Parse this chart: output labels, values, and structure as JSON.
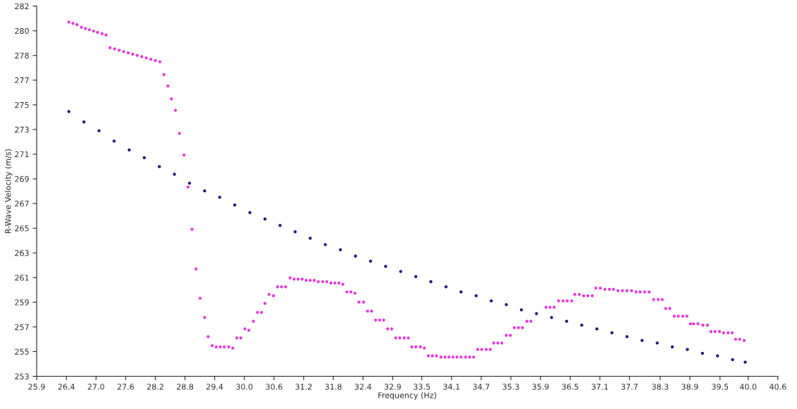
{
  "chart_data": {
    "type": "scatter",
    "xlabel": "Frequency (Hz)",
    "ylabel": "R-Wave Velocity (m/s)",
    "marker": "circle",
    "grid": false,
    "xlim": [
      25.86,
      40.6
    ],
    "ylim": [
      253.4,
      282.35
    ],
    "xticks": [
      {
        "value": 25.86,
        "label": "25.9"
      },
      {
        "value": 26.45,
        "label": "26.4"
      },
      {
        "value": 27.04,
        "label": "27.0"
      },
      {
        "value": 27.63,
        "label": "27.6"
      },
      {
        "value": 28.22,
        "label": "28.2"
      },
      {
        "value": 28.81,
        "label": "28.8"
      },
      {
        "value": 29.4,
        "label": "29.4"
      },
      {
        "value": 29.99,
        "label": "30.0"
      },
      {
        "value": 30.58,
        "label": "30.6"
      },
      {
        "value": 31.17,
        "label": "31.2"
      },
      {
        "value": 31.76,
        "label": "31.8"
      },
      {
        "value": 32.35,
        "label": "32.4"
      },
      {
        "value": 32.94,
        "label": "32.9"
      },
      {
        "value": 33.52,
        "label": "33.5"
      },
      {
        "value": 34.11,
        "label": "34.1"
      },
      {
        "value": 34.7,
        "label": "34.7"
      },
      {
        "value": 35.29,
        "label": "35.3"
      },
      {
        "value": 35.88,
        "label": "35.9"
      },
      {
        "value": 36.47,
        "label": "36.5"
      },
      {
        "value": 37.06,
        "label": "37.1"
      },
      {
        "value": 37.65,
        "label": "37.7"
      },
      {
        "value": 38.26,
        "label": "38.3"
      },
      {
        "value": 38.85,
        "label": "38.9"
      },
      {
        "value": 39.45,
        "label": "39.5"
      },
      {
        "value": 40.01,
        "label": "40.0"
      },
      {
        "value": 40.6,
        "label": "40.6"
      }
    ],
    "yticks": [
      {
        "value": 253.4,
        "label": "253"
      },
      {
        "value": 255.33,
        "label": "255"
      },
      {
        "value": 257.26,
        "label": "257"
      },
      {
        "value": 259.19,
        "label": "259"
      },
      {
        "value": 261.12,
        "label": "261"
      },
      {
        "value": 263.05,
        "label": "263"
      },
      {
        "value": 264.98,
        "label": "265"
      },
      {
        "value": 266.91,
        "label": "267"
      },
      {
        "value": 268.84,
        "label": "269"
      },
      {
        "value": 270.77,
        "label": "271"
      },
      {
        "value": 272.7,
        "label": "273"
      },
      {
        "value": 274.63,
        "label": "275"
      },
      {
        "value": 276.56,
        "label": "277"
      },
      {
        "value": 278.49,
        "label": "278"
      },
      {
        "value": 280.42,
        "label": "280"
      },
      {
        "value": 282.35,
        "label": "282"
      }
    ],
    "series": [
      {
        "color": "#e040d8",
        "x": [
          26.5,
          26.58,
          26.66,
          26.75,
          26.83,
          26.91,
          26.99,
          27.07,
          27.16,
          27.24,
          27.32,
          27.41,
          27.5,
          27.59,
          27.68,
          27.77,
          27.86,
          27.95,
          28.04,
          28.13,
          28.22,
          28.31,
          28.39,
          28.47,
          28.54,
          28.62,
          28.7,
          28.79,
          28.87,
          28.95,
          29.03,
          29.11,
          29.2,
          29.27,
          29.35,
          29.43,
          29.51,
          29.59,
          29.68,
          29.76,
          29.84,
          29.92,
          30.0,
          30.08,
          30.17,
          30.25,
          30.33,
          30.4,
          30.48,
          30.57,
          30.65,
          30.73,
          30.81,
          30.9,
          30.98,
          31.06,
          31.14,
          31.22,
          31.3,
          31.38,
          31.46,
          31.55,
          31.63,
          31.71,
          31.79,
          31.87,
          31.95,
          32.03,
          32.11,
          32.19,
          32.27,
          32.36,
          32.44,
          32.52,
          32.6,
          32.68,
          32.76,
          32.84,
          32.92,
          33.0,
          33.08,
          33.17,
          33.25,
          33.32,
          33.4,
          33.49,
          33.57,
          33.65,
          33.73,
          33.81,
          33.9,
          33.98,
          34.06,
          34.14,
          34.22,
          34.3,
          34.39,
          34.47,
          34.55,
          34.63,
          34.71,
          34.8,
          34.88,
          34.95,
          35.03,
          35.11,
          35.2,
          35.28,
          35.36,
          35.44,
          35.52,
          35.61,
          35.69,
          35.99,
          36.07,
          36.15,
          36.24,
          36.33,
          36.41,
          36.5,
          36.56,
          36.65,
          36.74,
          36.82,
          36.91,
          36.98,
          37.07,
          37.16,
          37.25,
          37.33,
          37.42,
          37.51,
          37.6,
          37.69,
          37.78,
          37.86,
          37.95,
          38.04,
          38.13,
          38.22,
          38.3,
          38.37,
          38.45,
          38.54,
          38.62,
          38.71,
          38.79,
          38.86,
          38.92,
          39.01,
          39.11,
          39.2,
          39.27,
          39.35,
          39.44,
          39.52,
          39.61,
          39.69,
          39.76,
          39.84,
          39.93
        ],
        "values": [
          281.1,
          281.0,
          280.9,
          280.7,
          280.6,
          280.5,
          280.4,
          280.3,
          280.2,
          280.1,
          279.1,
          279.0,
          278.9,
          278.8,
          278.7,
          278.6,
          278.5,
          278.4,
          278.3,
          278.2,
          278.1,
          278.0,
          277.0,
          276.1,
          275.1,
          274.2,
          272.4,
          270.7,
          268.2,
          264.9,
          261.8,
          259.5,
          258.0,
          256.5,
          255.8,
          255.7,
          255.7,
          255.7,
          255.7,
          255.6,
          256.4,
          256.4,
          257.1,
          257.0,
          257.7,
          258.4,
          258.4,
          259.1,
          259.8,
          259.7,
          260.4,
          260.4,
          260.4,
          261.1,
          261.0,
          261.0,
          261.0,
          260.9,
          260.9,
          260.9,
          260.8,
          260.8,
          260.8,
          260.7,
          260.7,
          260.7,
          260.6,
          260.0,
          260.0,
          259.9,
          259.2,
          259.2,
          258.5,
          258.5,
          257.8,
          257.8,
          257.8,
          257.1,
          257.1,
          256.4,
          256.4,
          256.4,
          256.4,
          255.7,
          255.7,
          255.7,
          255.6,
          255.0,
          255.0,
          255.0,
          254.9,
          254.9,
          254.9,
          254.9,
          254.9,
          254.9,
          254.9,
          254.9,
          254.9,
          255.5,
          255.5,
          255.5,
          255.5,
          256.0,
          256.0,
          256.0,
          256.6,
          256.6,
          257.2,
          257.2,
          257.2,
          257.7,
          257.7,
          258.8,
          258.8,
          258.8,
          259.3,
          259.3,
          259.3,
          259.3,
          259.8,
          259.8,
          259.7,
          259.7,
          259.7,
          260.3,
          260.3,
          260.2,
          260.2,
          260.2,
          260.1,
          260.1,
          260.1,
          260.1,
          260.0,
          260.0,
          260.0,
          260.0,
          259.4,
          259.4,
          259.4,
          258.7,
          258.7,
          258.1,
          258.1,
          258.1,
          258.1,
          257.5,
          257.5,
          257.5,
          257.4,
          257.4,
          256.9,
          256.9,
          256.9,
          256.8,
          256.8,
          256.8,
          256.3,
          256.3,
          256.2
        ]
      },
      {
        "color": "#1a1a7a",
        "x": [
          26.5,
          26.8,
          27.1,
          27.4,
          27.7,
          28.0,
          28.3,
          28.6,
          28.9,
          29.2,
          29.5,
          29.8,
          30.1,
          30.4,
          30.7,
          31.0,
          31.3,
          31.6,
          31.9,
          32.2,
          32.5,
          32.8,
          33.1,
          33.4,
          33.7,
          34.0,
          34.3,
          34.6,
          34.9,
          35.2,
          35.5,
          35.8,
          36.1,
          36.4,
          36.7,
          37.0,
          37.3,
          37.6,
          37.9,
          38.2,
          38.5,
          38.8,
          39.1,
          39.4,
          39.7,
          39.95
        ],
        "values": [
          274.1,
          273.3,
          272.6,
          271.8,
          271.1,
          270.5,
          269.8,
          269.2,
          268.5,
          267.9,
          267.4,
          266.8,
          266.2,
          265.7,
          265.2,
          264.7,
          264.2,
          263.7,
          263.3,
          262.8,
          262.4,
          262.0,
          261.6,
          261.2,
          260.8,
          260.4,
          260.0,
          259.7,
          259.3,
          259.0,
          258.6,
          258.3,
          258.0,
          257.7,
          257.4,
          257.1,
          256.8,
          256.5,
          256.2,
          256.0,
          255.7,
          255.5,
          255.2,
          255.0,
          254.7,
          254.5
        ]
      }
    ]
  }
}
